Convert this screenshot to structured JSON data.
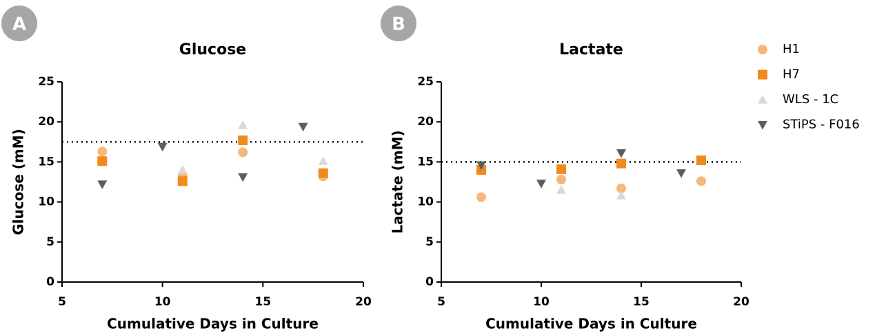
{
  "chart_data": [
    {
      "type": "scatter",
      "panel_label": "A",
      "title": "Glucose",
      "x_label": "Cumulative Days in Culture",
      "y_label": "Glucose (mM)",
      "xlim": [
        5,
        20
      ],
      "xticks": [
        5,
        10,
        15,
        20
      ],
      "ylim": [
        0,
        25
      ],
      "yticks": [
        0,
        5,
        10,
        15,
        20,
        25
      ],
      "reference_line": 17.5,
      "series": [
        {
          "name": "H1",
          "marker": "circle",
          "color": "#f5b87a",
          "x": [
            7,
            11,
            14,
            18
          ],
          "values": [
            16.3,
            13.3,
            16.2,
            13.2
          ]
        },
        {
          "name": "H7",
          "marker": "square",
          "color": "#f08a1c",
          "x": [
            7,
            11,
            14,
            18
          ],
          "values": [
            15.1,
            12.6,
            17.7,
            13.6
          ]
        },
        {
          "name": "WLS - 1C",
          "marker": "triangle-up",
          "color": "#d9d9d9",
          "x": [
            11,
            14,
            18
          ],
          "values": [
            14.0,
            19.6,
            15.1
          ]
        },
        {
          "name": "STiPS - F016",
          "marker": "triangle-down",
          "color": "#595f5f",
          "x": [
            7,
            10,
            14,
            17
          ],
          "values": [
            12.2,
            16.9,
            13.1,
            19.4
          ]
        }
      ]
    },
    {
      "type": "scatter",
      "panel_label": "B",
      "title": "Lactate",
      "x_label": "Cumulative Days in Culture",
      "y_label": "Lactate (mM)",
      "xlim": [
        5,
        20
      ],
      "xticks": [
        5,
        10,
        15,
        20
      ],
      "ylim": [
        0,
        25
      ],
      "yticks": [
        0,
        5,
        10,
        15,
        20,
        25
      ],
      "reference_line": 15,
      "series": [
        {
          "marker": "circle",
          "color": "#f5b87a",
          "x": [
            7,
            11,
            14,
            18
          ],
          "values": [
            10.6,
            12.8,
            11.7,
            12.6
          ]
        },
        {
          "marker": "square",
          "color": "#f08a1c",
          "x": [
            7,
            11,
            14,
            18
          ],
          "values": [
            14.0,
            14.1,
            14.8,
            15.2
          ]
        },
        {
          "marker": "triangle-up",
          "color": "#d9d9d9",
          "x": [
            11,
            14
          ],
          "values": [
            11.5,
            10.8
          ]
        },
        {
          "marker": "triangle-down",
          "color": "#595f5f",
          "x": [
            7,
            10,
            14,
            17
          ],
          "values": [
            14.6,
            12.3,
            16.1,
            13.6
          ]
        }
      ]
    }
  ]
}
